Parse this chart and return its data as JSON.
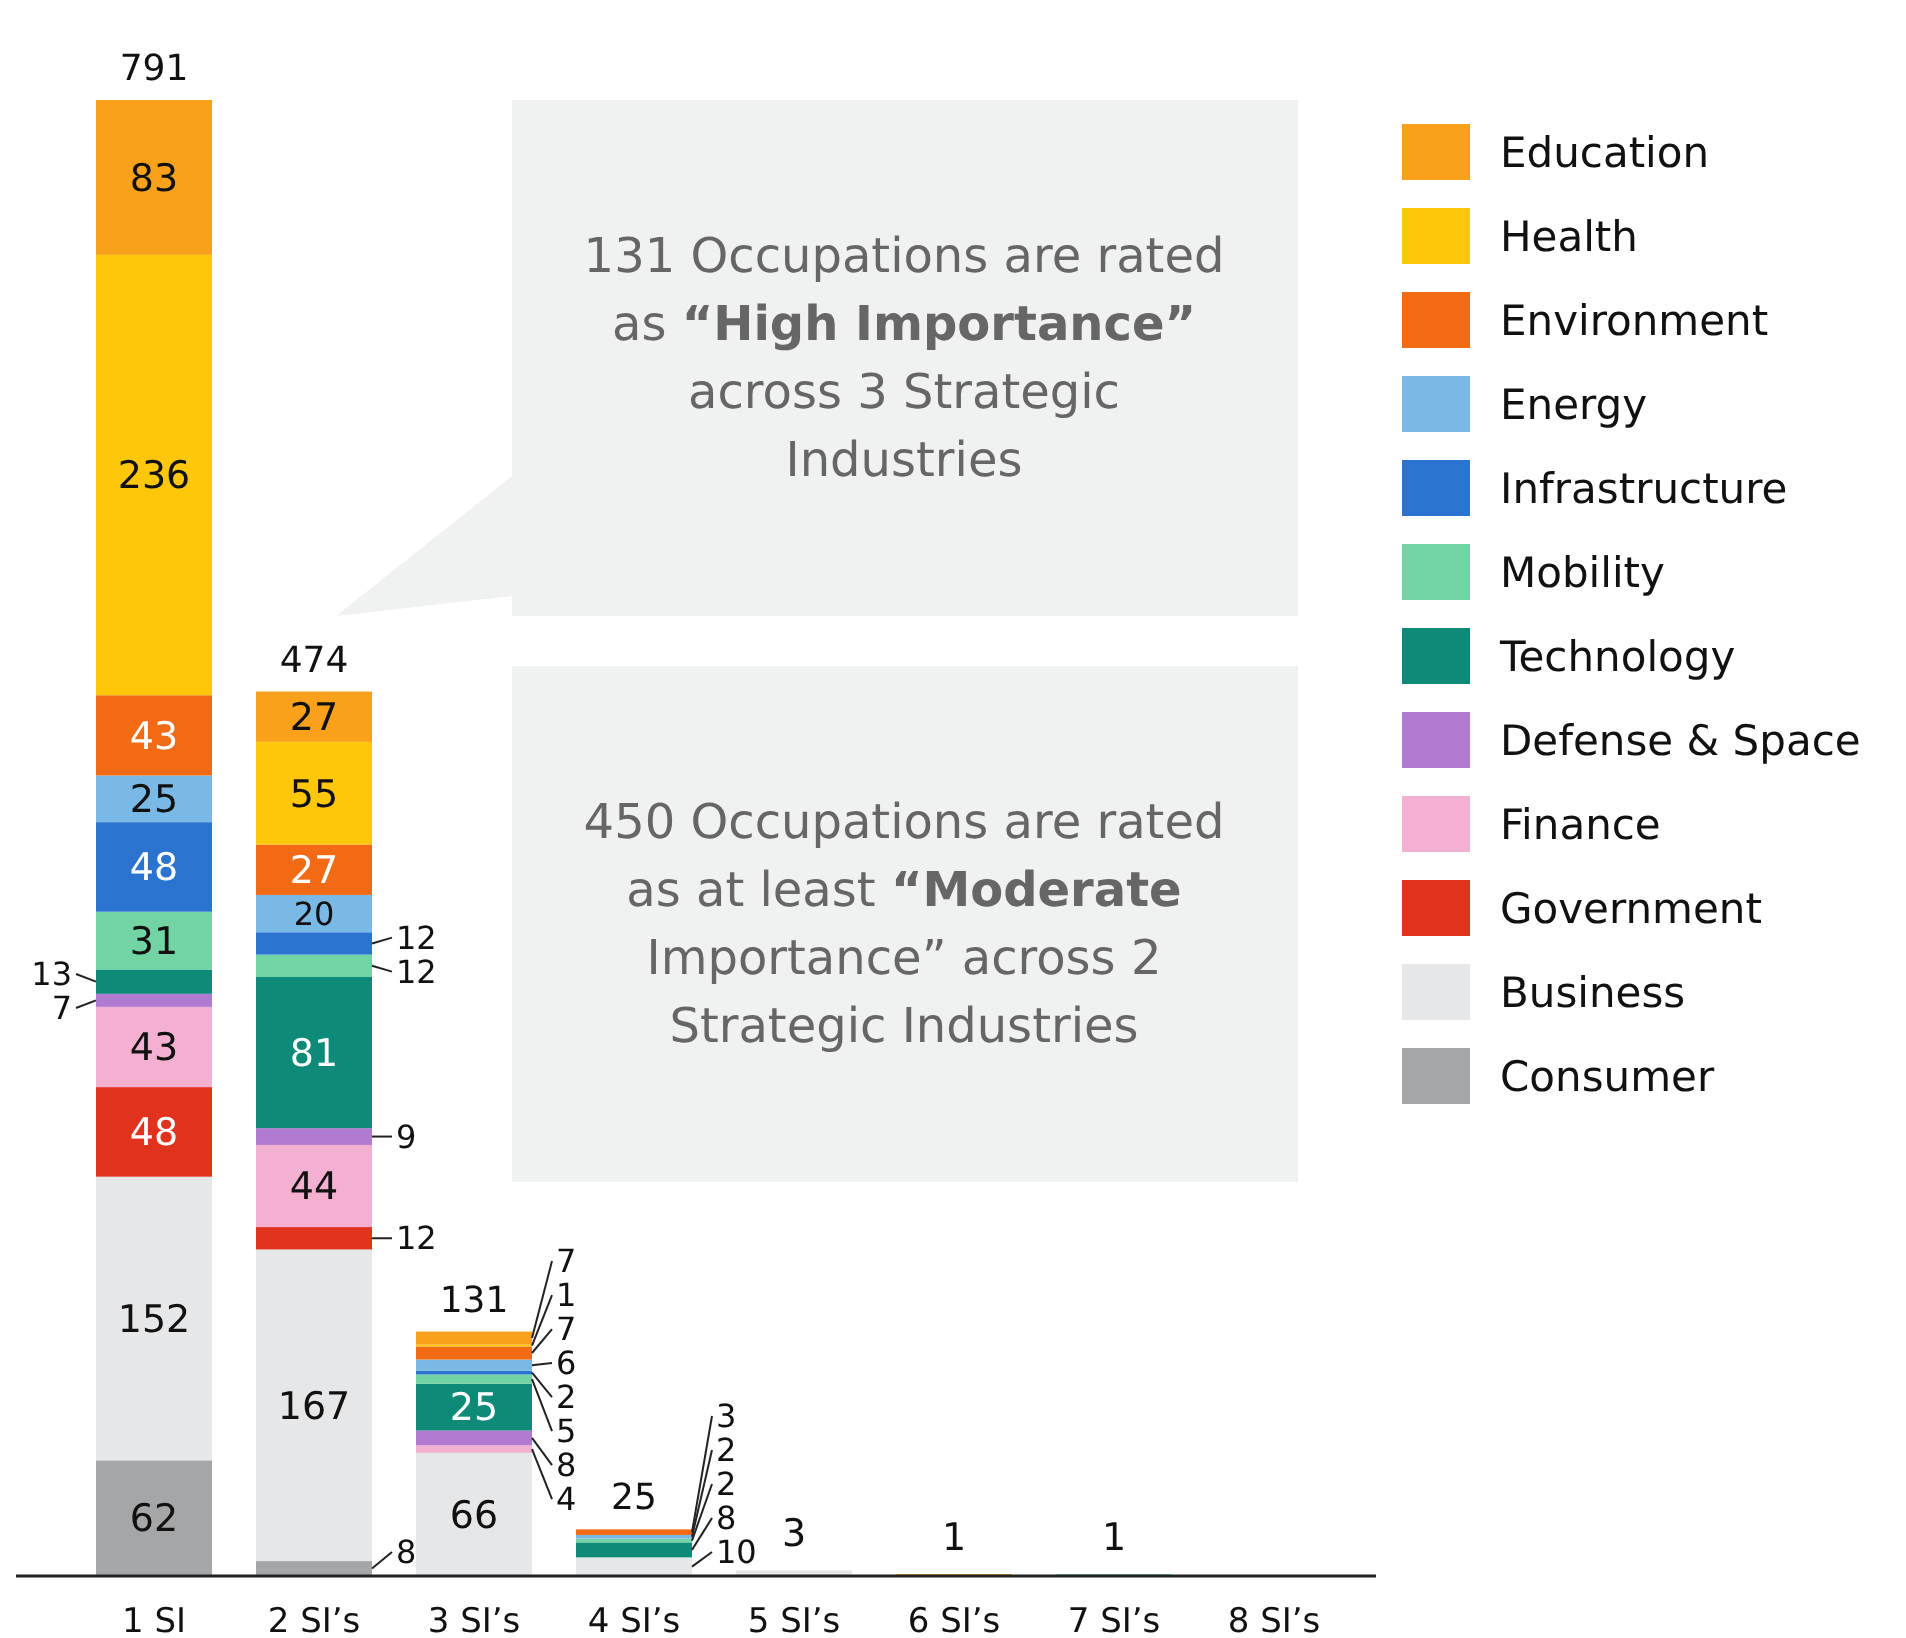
{
  "chart_data": {
    "type": "bar",
    "stacked": true,
    "data_labels": true,
    "legend": "right",
    "categories": [
      "1 SI",
      "2 SI’s",
      "3 SI’s",
      "4 SI’s",
      "5 SI’s",
      "6 SI’s",
      "7 SI’s",
      "8 SI’s"
    ],
    "series": [
      {
        "name": "Consumer",
        "color": "#a4a6a8",
        "values": [
          62,
          8,
          null,
          null,
          null,
          null,
          null,
          null
        ]
      },
      {
        "name": "Business",
        "color": "#e6e7e9",
        "values": [
          152,
          167,
          66,
          10,
          3,
          null,
          null,
          null
        ]
      },
      {
        "name": "Government",
        "color": "#e0321d",
        "values": [
          48,
          12,
          null,
          null,
          null,
          null,
          null,
          null
        ]
      },
      {
        "name": "Finance",
        "color": "#f4b0d0",
        "values": [
          43,
          44,
          4,
          null,
          null,
          null,
          null,
          null
        ]
      },
      {
        "name": "Defense & Space",
        "color": "#b07ad0",
        "values": [
          7,
          9,
          8,
          null,
          null,
          null,
          null,
          null
        ]
      },
      {
        "name": "Technology",
        "color": "#0d8a78",
        "values": [
          13,
          81,
          25,
          8,
          null,
          null,
          null,
          null
        ]
      },
      {
        "name": "Mobility",
        "color": "#72d3a5",
        "values": [
          31,
          12,
          5,
          2,
          null,
          null,
          1,
          null
        ]
      },
      {
        "name": "Infrastructure",
        "color": "#2a74d0",
        "values": [
          48,
          12,
          2,
          null,
          null,
          null,
          null,
          null
        ]
      },
      {
        "name": "Energy",
        "color": "#7ab8e6",
        "values": [
          25,
          20,
          6,
          2,
          null,
          null,
          null,
          null
        ]
      },
      {
        "name": "Environment",
        "color": "#f36a15",
        "values": [
          43,
          27,
          7,
          3,
          null,
          null,
          null,
          null
        ]
      },
      {
        "name": "Health",
        "color": "#fec70a",
        "values": [
          236,
          55,
          1,
          null,
          null,
          null,
          null,
          null
        ]
      },
      {
        "name": "Education",
        "color": "#f9a11b",
        "values": [
          83,
          27,
          7,
          null,
          null,
          1,
          null,
          null
        ]
      }
    ],
    "totals": [
      "791",
      "474",
      "131",
      "25",
      null,
      null,
      null,
      null
    ],
    "annotations": [
      "131 Occupations are rated as “High Importance” across 3 Strategic Industries",
      "450 Occupations are rated as at least “Moderate Importance” across 2 Strategic Industries"
    ]
  }
}
